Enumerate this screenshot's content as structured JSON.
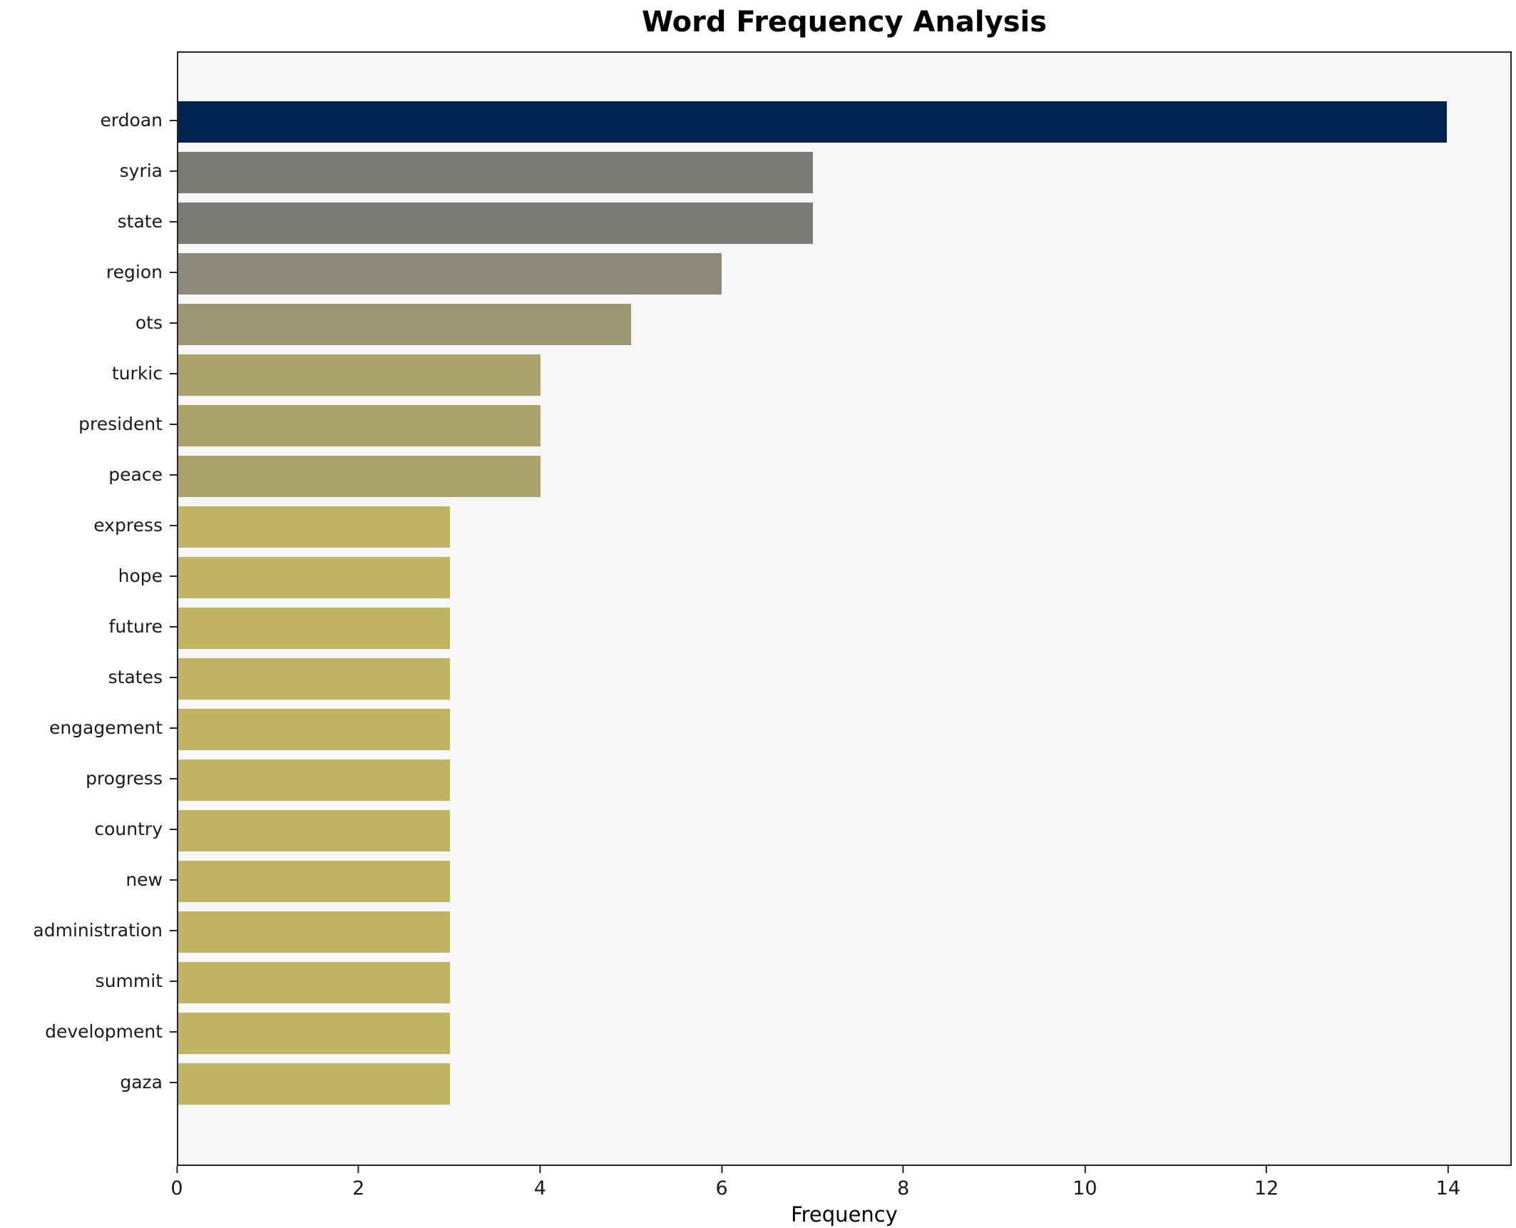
{
  "chart_data": {
    "type": "bar",
    "orientation": "horizontal",
    "title": "Word Frequency Analysis",
    "xlabel": "Frequency",
    "ylabel": "",
    "categories": [
      "erdoan",
      "syria",
      "state",
      "region",
      "ots",
      "turkic",
      "president",
      "peace",
      "express",
      "hope",
      "future",
      "states",
      "engagement",
      "progress",
      "country",
      "new",
      "administration",
      "summit",
      "development",
      "gaza"
    ],
    "values": [
      14,
      7,
      7,
      6,
      5,
      4,
      4,
      4,
      3,
      3,
      3,
      3,
      3,
      3,
      3,
      3,
      3,
      3,
      3,
      3
    ],
    "bar_colors": [
      "#02234f",
      "#7b7a77",
      "#7b7a77",
      "#8e8a7b",
      "#9e9775",
      "#aca36c",
      "#aca36c",
      "#aca36c",
      "#c1b366",
      "#c1b366",
      "#c1b366",
      "#c1b366",
      "#c1b366",
      "#c1b366",
      "#c1b366",
      "#c1b366",
      "#c1b366",
      "#c1b366",
      "#c1b366",
      "#c1b366"
    ],
    "xticks": [
      0,
      2,
      4,
      6,
      8,
      10,
      12,
      14
    ],
    "xlim": [
      0,
      14.7
    ],
    "grid": false,
    "legend": null,
    "plot_background": "#f7f7f8",
    "spine_color": "#262626"
  }
}
